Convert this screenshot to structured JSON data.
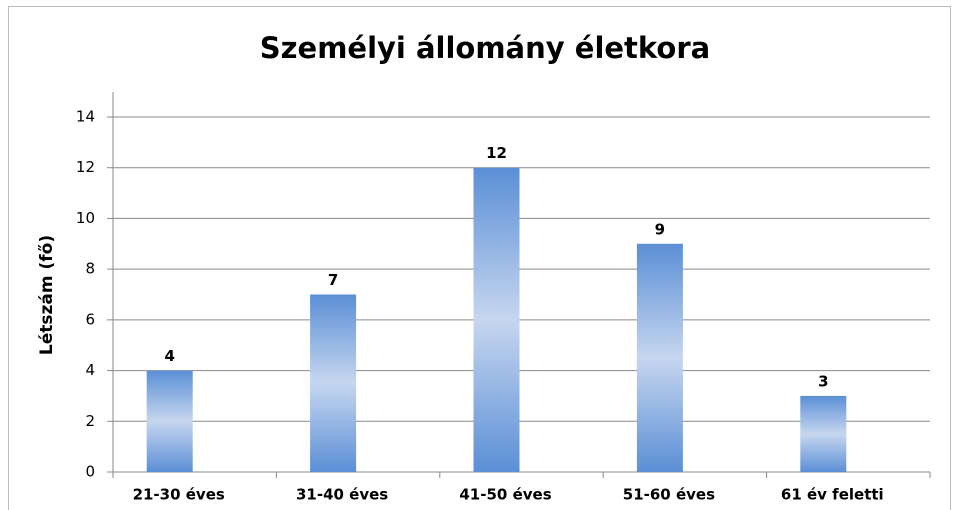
{
  "chart_data": {
    "type": "bar",
    "title": "Személyi állomány életkora",
    "y_label": "Létszám  (fő)",
    "categories": [
      "21-30 éves",
      "31-40 éves",
      "41-50 éves",
      "51-60 éves",
      "61 év feletti"
    ],
    "values": [
      4,
      7,
      12,
      9,
      3
    ],
    "color": "#5b8fd6",
    "ylim": [
      0,
      14
    ],
    "yticks": [
      0,
      2,
      4,
      6,
      8,
      10,
      12,
      14
    ],
    "grid": true
  }
}
